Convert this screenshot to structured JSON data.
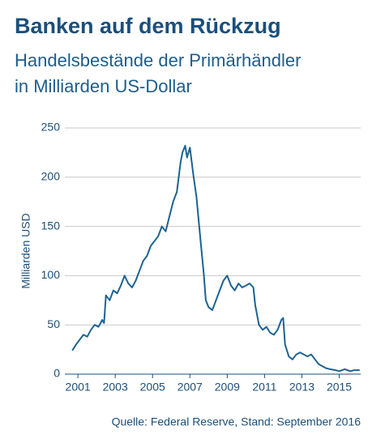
{
  "chart_data": {
    "type": "line",
    "title": "Banken auf dem Rückzug",
    "subtitle": [
      "Handelsbestände der Primärhändler",
      "in Milliarden US-Dollar"
    ],
    "y_label": "Milliarden USD",
    "source": "Quelle: Federal Reserve, Stand: September 2016",
    "color": "#1d6391",
    "grid": true,
    "xlim": [
      2000.3,
      2016.15
    ],
    "ylim": [
      0,
      250
    ],
    "xticks": [
      2001,
      2003,
      2005,
      2007,
      2009,
      2011,
      2013,
      2015
    ],
    "yticks": [
      0,
      50,
      100,
      150,
      200,
      250
    ],
    "x": [
      2000.7,
      2000.9,
      2001.1,
      2001.3,
      2001.5,
      2001.7,
      2001.9,
      2002.1,
      2002.3,
      2002.4,
      2002.5,
      2002.7,
      2002.9,
      2003.1,
      2003.3,
      2003.5,
      2003.7,
      2003.9,
      2004.1,
      2004.3,
      2004.5,
      2004.7,
      2004.9,
      2005.1,
      2005.3,
      2005.5,
      2005.7,
      2005.9,
      2006.1,
      2006.3,
      2006.5,
      2006.6,
      2006.75,
      2006.85,
      2007.0,
      2007.1,
      2007.2,
      2007.35,
      2007.5,
      2007.6,
      2007.75,
      2007.85,
      2008.0,
      2008.2,
      2008.4,
      2008.6,
      2008.8,
      2009.0,
      2009.2,
      2009.4,
      2009.6,
      2009.8,
      2010.0,
      2010.2,
      2010.4,
      2010.5,
      2010.7,
      2010.9,
      2011.1,
      2011.3,
      2011.5,
      2011.7,
      2011.9,
      2012.0,
      2012.1,
      2012.3,
      2012.5,
      2012.7,
      2012.9,
      2013.1,
      2013.3,
      2013.5,
      2013.7,
      2013.9,
      2014.1,
      2014.3,
      2014.5,
      2014.8,
      2015.0,
      2015.3,
      2015.6,
      2015.8,
      2016.1
    ],
    "values": [
      24,
      30,
      35,
      40,
      38,
      45,
      50,
      48,
      55,
      52,
      80,
      75,
      85,
      82,
      90,
      100,
      92,
      88,
      95,
      105,
      115,
      120,
      130,
      135,
      140,
      150,
      145,
      160,
      175,
      185,
      215,
      225,
      232,
      220,
      230,
      215,
      200,
      180,
      150,
      130,
      100,
      75,
      68,
      65,
      75,
      85,
      95,
      100,
      90,
      85,
      92,
      88,
      90,
      92,
      88,
      70,
      50,
      45,
      48,
      42,
      40,
      45,
      55,
      57,
      30,
      18,
      15,
      20,
      22,
      20,
      18,
      20,
      15,
      10,
      8,
      6,
      5,
      4,
      3,
      5,
      3,
      4,
      4
    ]
  }
}
